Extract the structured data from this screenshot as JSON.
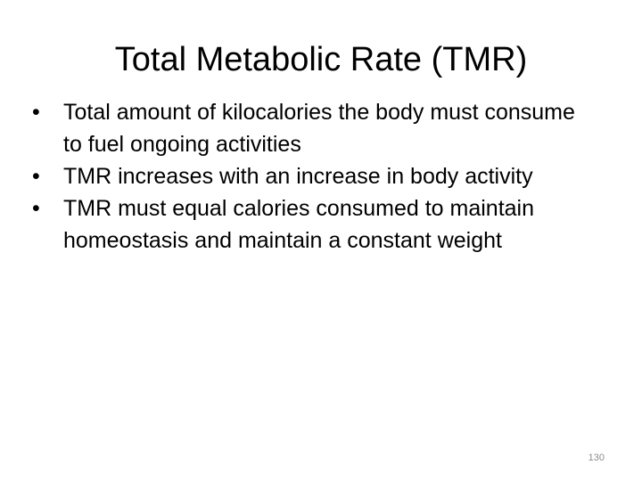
{
  "slide": {
    "title": "Total Metabolic Rate (TMR)",
    "bullet_symbol": "•",
    "bullets": [
      "Total amount of kilocalories the body must consume to fuel ongoing activities",
      "TMR increases with an increase in body activity",
      "TMR must equal calories consumed to maintain homeostasis and maintain a constant weight"
    ],
    "page_number": "130"
  }
}
